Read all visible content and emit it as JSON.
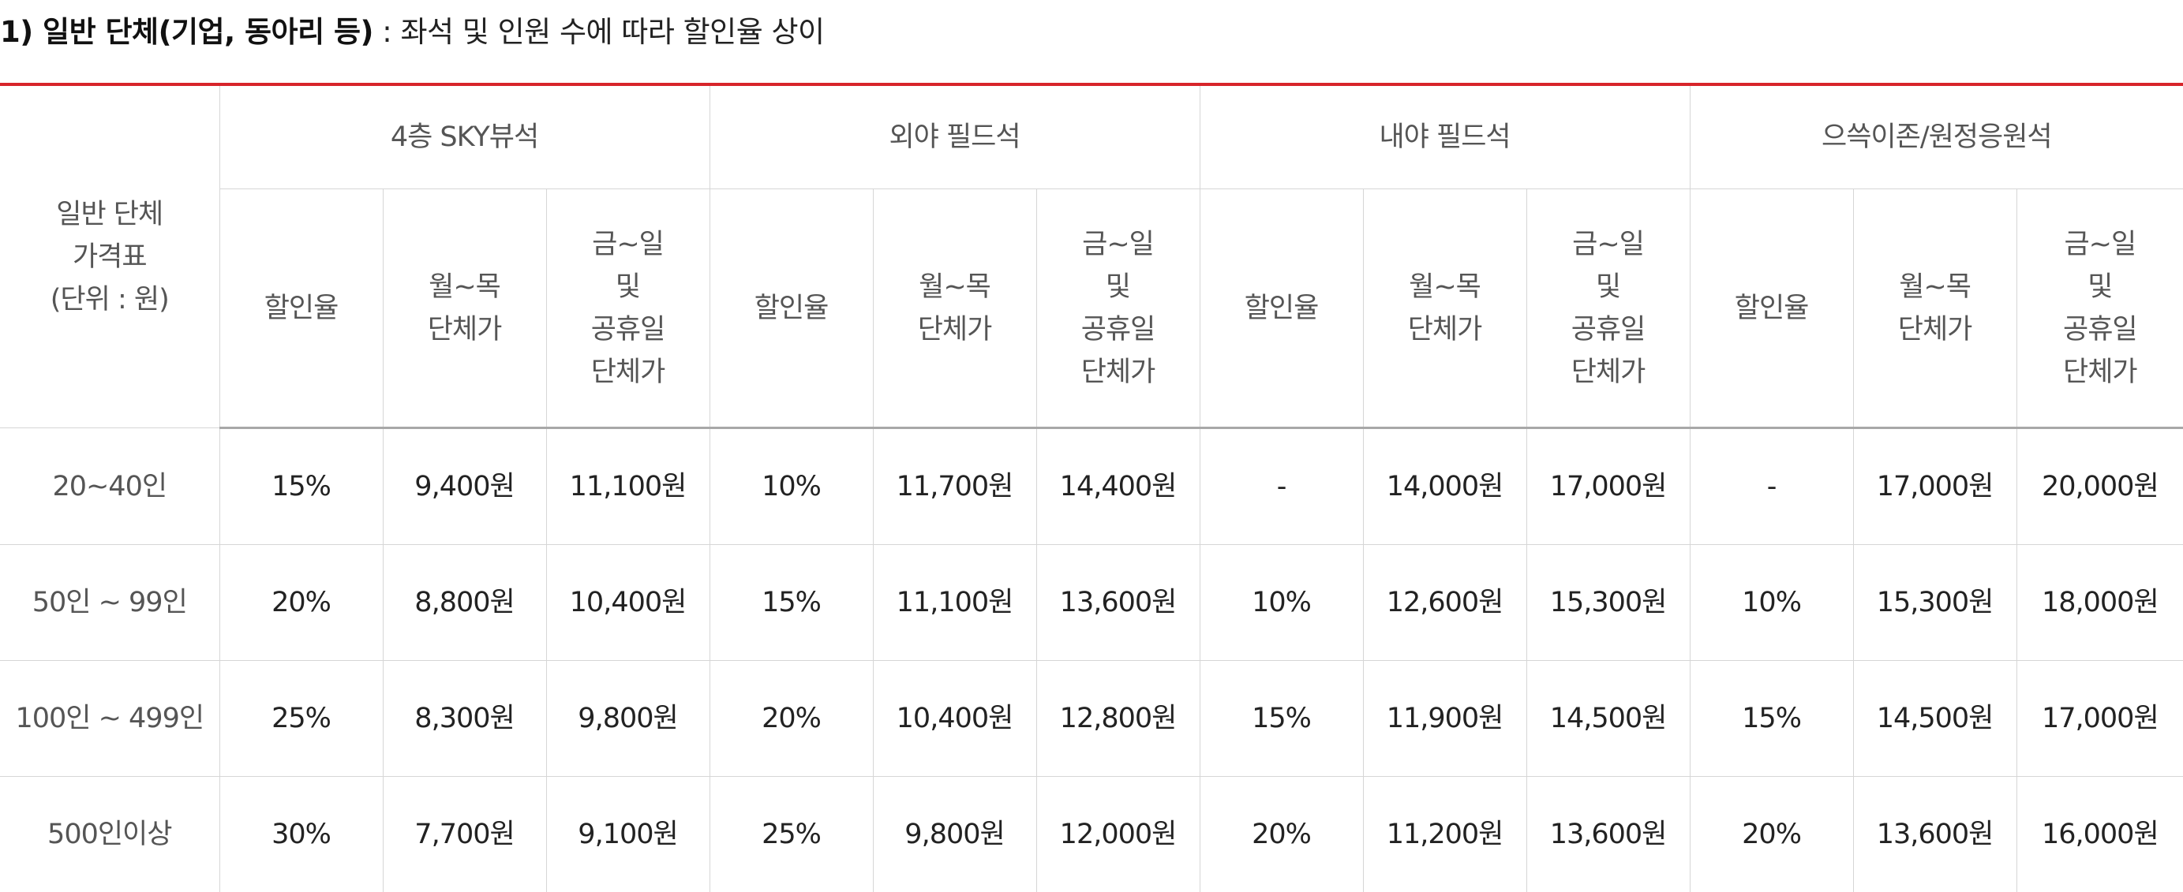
{
  "heading": {
    "strong": "1) 일반 단체(기업, 동아리 등)",
    "rest": " : 좌석 및 인원 수에 따라 할인율 상이"
  },
  "colors": {
    "accent_line": "#d7242a",
    "border": "#d6d6d6",
    "header_text": "#555555"
  },
  "table": {
    "corner_header": "일반 단체\n가격표\n(단위 : 원)",
    "groups": [
      "4층 SKY뷰석",
      "외야 필드석",
      "내야 필드석",
      "으쓱이존/원정응원석"
    ],
    "subheaders": [
      "할인율",
      "월~목\n단체가",
      "금~일\n및\n공휴일\n단체가"
    ],
    "rows": [
      {
        "label": "20~40인",
        "cells": [
          "15%",
          "9,400원",
          "11,100원",
          "10%",
          "11,700원",
          "14,400원",
          "-",
          "14,000원",
          "17,000원",
          "-",
          "17,000원",
          "20,000원"
        ]
      },
      {
        "label": "50인 ~ 99인",
        "cells": [
          "20%",
          "8,800원",
          "10,400원",
          "15%",
          "11,100원",
          "13,600원",
          "10%",
          "12,600원",
          "15,300원",
          "10%",
          "15,300원",
          "18,000원"
        ]
      },
      {
        "label": "100인 ~ 499인",
        "cells": [
          "25%",
          "8,300원",
          "9,800원",
          "20%",
          "10,400원",
          "12,800원",
          "15%",
          "11,900원",
          "14,500원",
          "15%",
          "14,500원",
          "17,000원"
        ]
      },
      {
        "label": "500인이상",
        "cells": [
          "30%",
          "7,700원",
          "9,100원",
          "25%",
          "9,800원",
          "12,000원",
          "20%",
          "11,200원",
          "13,600원",
          "20%",
          "13,600원",
          "16,000원"
        ]
      }
    ]
  }
}
